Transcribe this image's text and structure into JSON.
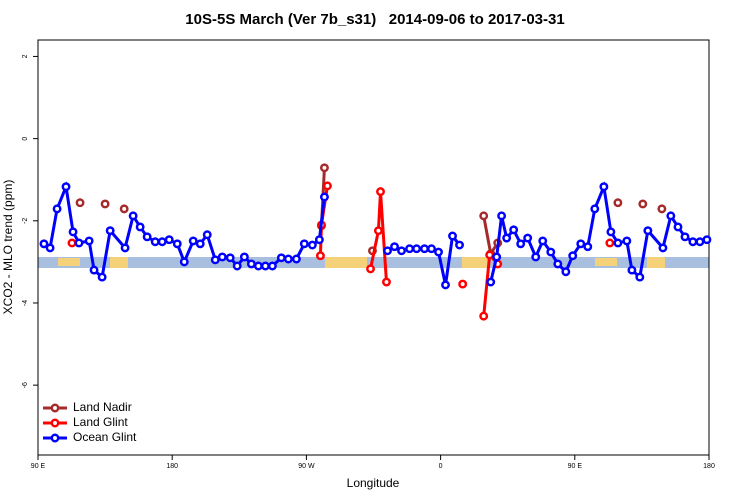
{
  "chart_data": {
    "type": "line",
    "title": "10S-5S March (Ver 7b_s31)   2014-09-06 to 2017-03-31",
    "x_label": "Longitude",
    "y_label": "XCO2 - MLO trend (ppm)",
    "xlim": [
      90,
      540
    ],
    "ylim": [
      -7.7,
      2.4
    ],
    "xticks": [
      {
        "value": 90,
        "label": "90 E"
      },
      180,
      {
        "value": 270,
        "label": "90 W"
      },
      {
        "value": 360,
        "label": "0"
      },
      {
        "value": 450,
        "label": "90 E"
      },
      {
        "value": 540,
        "label": "180"
      }
    ],
    "yticks": [
      -6,
      -4,
      -2,
      0,
      2
    ],
    "legend": "bottom-left",
    "series": [
      {
        "name": "Land Nadir",
        "color": "#a52a2a",
        "x": [
          118.2,
          null,
          135.0,
          null,
          147.8,
          null,
          282.1,
          280.1,
          null,
          314.3,
          null,
          388.9,
          393.6,
          398.3,
          null,
          478.9,
          null,
          495.6,
          null,
          508.4
        ],
        "values": [
          -1.56,
          null,
          -1.59,
          null,
          -1.71,
          null,
          -0.71,
          -2.12,
          null,
          -2.73,
          null,
          -1.88,
          -2.8,
          -2.54,
          null,
          -1.56,
          null,
          -1.59,
          null,
          -1.71
        ]
      },
      {
        "name": "Land Glint",
        "color": "#ff0000",
        "x": [
          112.8,
          null,
          279.4,
          280.1,
          284.1,
          null,
          313.0,
          318.3,
          319.7,
          323.7,
          null,
          374.8,
          null,
          388.9,
          392.9,
          398.3,
          null,
          473.5
        ],
        "values": [
          -2.54,
          null,
          -2.85,
          -2.1,
          -1.15,
          null,
          -3.17,
          -2.24,
          -1.29,
          -3.49,
          null,
          -3.54,
          null,
          -4.32,
          -2.83,
          -3.05,
          null,
          -2.54
        ]
      },
      {
        "name": "Ocean Glint",
        "color": "#0000ff",
        "x": [
          94.0,
          98.1,
          102.8,
          108.8,
          113.5,
          117.5,
          124.3,
          127.6,
          133.0,
          138.4,
          148.4,
          153.8,
          158.5,
          163.2,
          168.6,
          173.3,
          178.0,
          183.4,
          188.1,
          194.1,
          198.8,
          203.5,
          208.9,
          213.6,
          218.9,
          223.6,
          228.4,
          233.1,
          237.8,
          242.5,
          247.2,
          253.2,
          257.9,
          263.3,
          268.6,
          274.0,
          278.7,
          282.1,
          null,
          324.4,
          329.1,
          333.8,
          339.2,
          343.9,
          349.2,
          353.9,
          358.6,
          363.3,
          368.0,
          372.7,
          null,
          393.6,
          397.6,
          400.9,
          404.3,
          409.0,
          413.7,
          418.4,
          423.8,
          428.5,
          433.9,
          438.6,
          444.0,
          448.6,
          454.0,
          458.7,
          463.4,
          469.5,
          474.2,
          478.9,
          484.9,
          488.3,
          493.6,
          499.0,
          509.1,
          514.4,
          519.2,
          523.9,
          529.2,
          533.9,
          538.6
        ],
        "values": [
          -2.56,
          -2.66,
          -1.71,
          -1.17,
          -2.27,
          -2.54,
          -2.49,
          -3.2,
          -3.37,
          -2.24,
          -2.66,
          -1.88,
          -2.15,
          -2.39,
          -2.51,
          -2.51,
          -2.46,
          -2.56,
          -3.0,
          -2.49,
          -2.56,
          -2.34,
          -2.95,
          -2.88,
          -2.9,
          -3.1,
          -2.88,
          -3.05,
          -3.1,
          -3.1,
          -3.1,
          -2.9,
          -2.93,
          -2.93,
          -2.56,
          -2.59,
          -2.46,
          -1.42,
          null,
          -2.73,
          -2.63,
          -2.73,
          -2.68,
          -2.68,
          -2.68,
          -2.68,
          -2.76,
          -3.56,
          -2.37,
          -2.59,
          null,
          -3.49,
          -2.88,
          -1.88,
          -2.42,
          -2.22,
          -2.56,
          -2.42,
          -2.88,
          -2.49,
          -2.76,
          -3.05,
          -3.24,
          -2.85,
          -2.56,
          -2.63,
          -1.71,
          -1.17,
          -2.27,
          -2.54,
          -2.49,
          -3.2,
          -3.37,
          -2.24,
          -2.66,
          -1.88,
          -2.15,
          -2.39,
          -2.51,
          -2.51,
          -2.46
        ]
      }
    ]
  }
}
